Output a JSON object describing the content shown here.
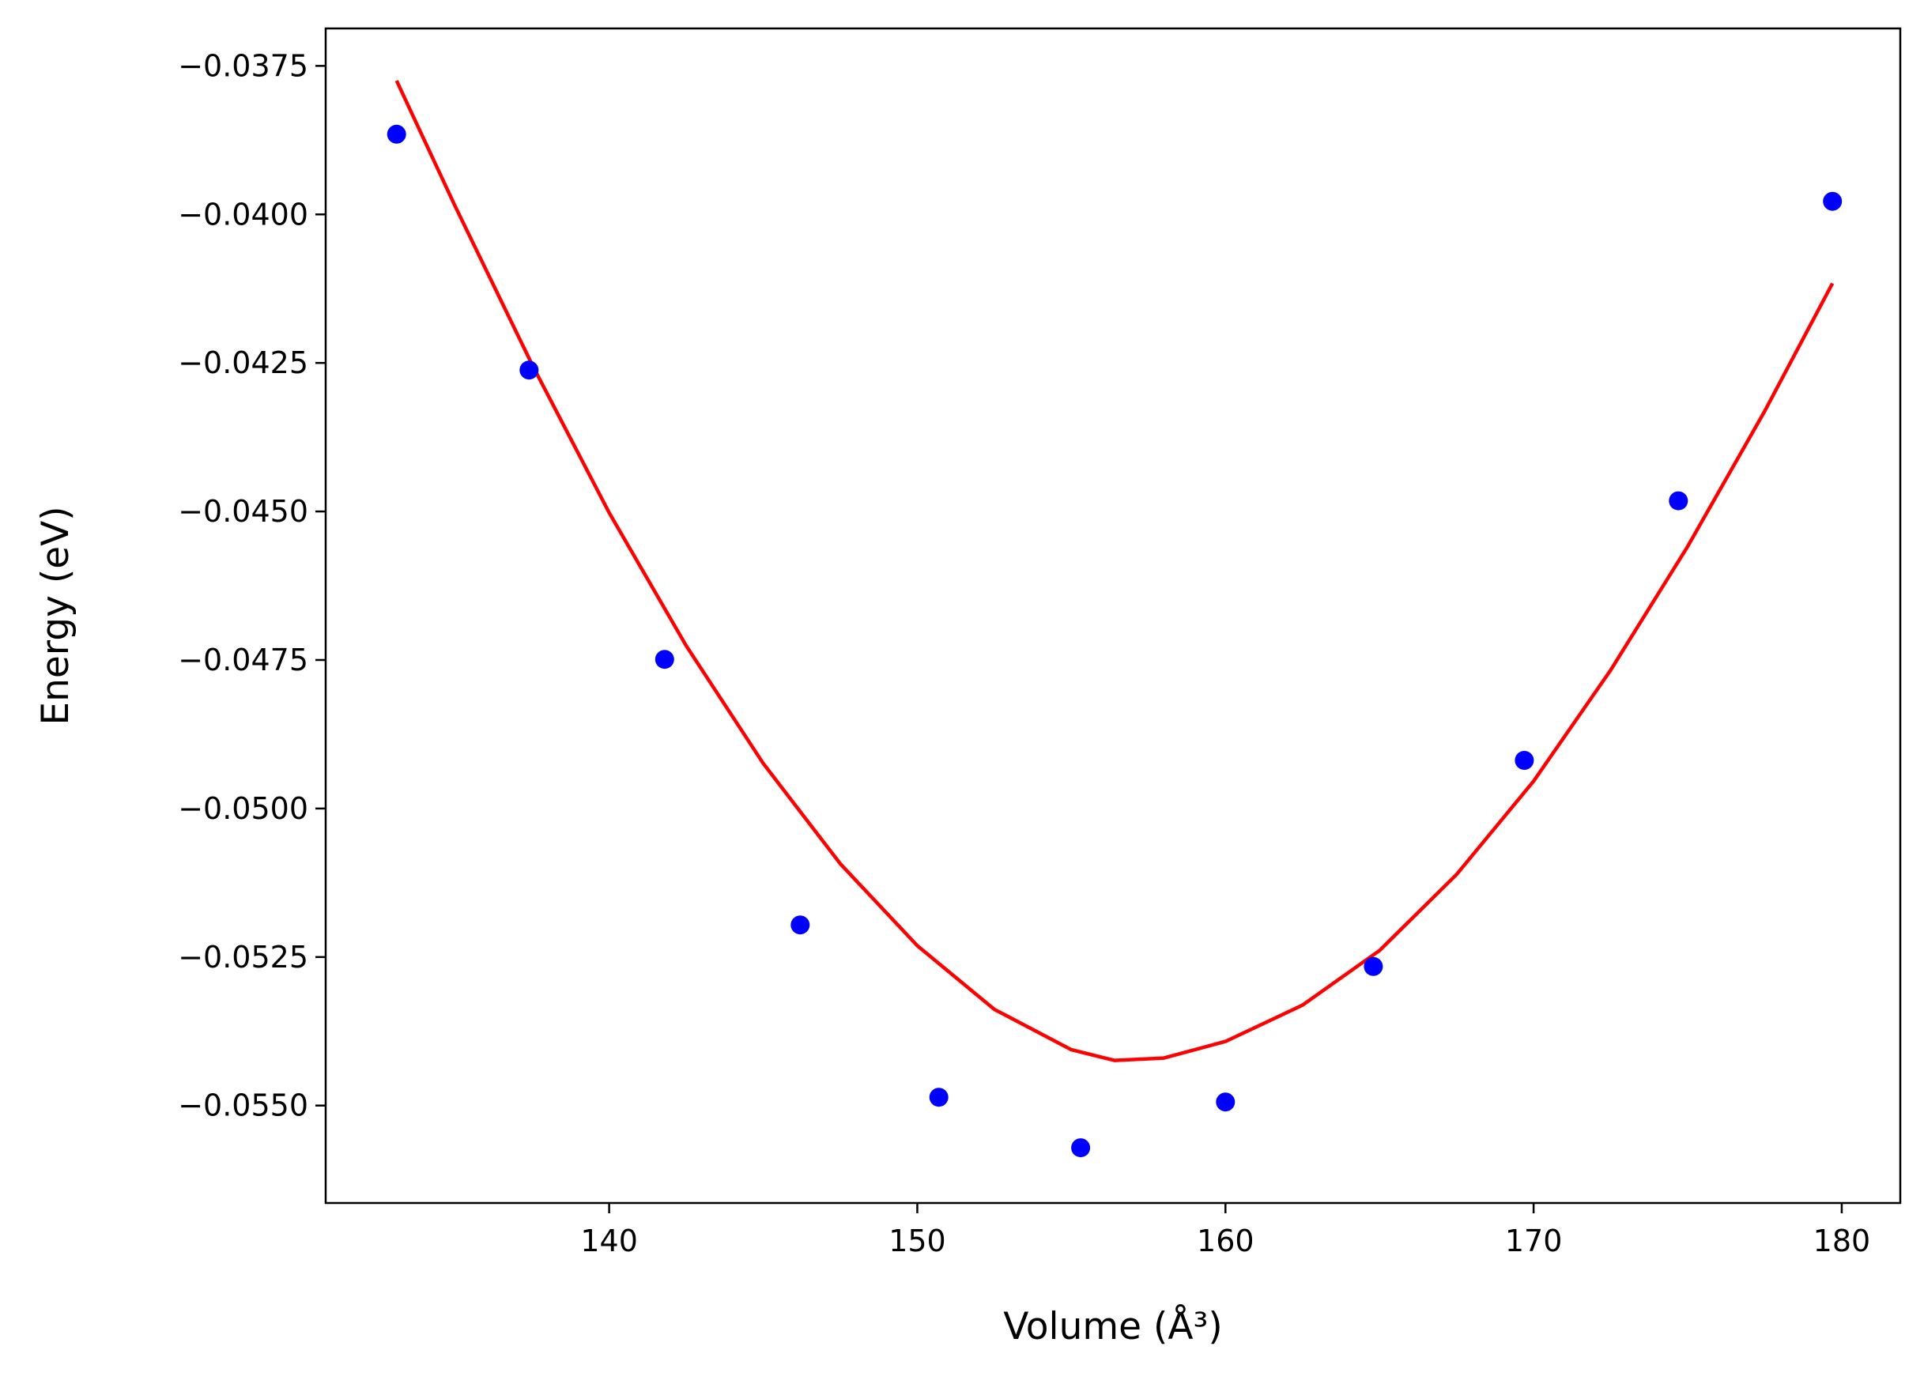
{
  "chart_data": {
    "type": "scatter",
    "title": "",
    "xlabel": "Volume (Å³)",
    "ylabel": "Energy (eV)",
    "xlim": [
      130.8,
      181.9
    ],
    "ylim": [
      -0.05664,
      -0.03687
    ],
    "xticks": [
      140,
      150,
      160,
      170,
      180
    ],
    "xtick_labels": [
      "140",
      "150",
      "160",
      "170",
      "180"
    ],
    "yticks": [
      -0.0375,
      -0.04,
      -0.0425,
      -0.045,
      -0.0475,
      -0.05,
      -0.0525,
      -0.055
    ],
    "ytick_labels": [
      "−0.0375",
      "−0.0400",
      "−0.0425",
      "−0.0450",
      "−0.0475",
      "−0.0500",
      "−0.0525",
      "−0.0550"
    ],
    "grid": false,
    "series": [
      {
        "kind": "scatter",
        "color": "#0000ff",
        "x": [
          133.1,
          137.4,
          141.8,
          146.2,
          150.7,
          155.3,
          160.0,
          164.8,
          169.7,
          174.7,
          179.7
        ],
        "y": [
          -0.03865,
          -0.04262,
          -0.04749,
          -0.05196,
          -0.05486,
          -0.05571,
          -0.05494,
          -0.05266,
          -0.04919,
          -0.04482,
          -0.03978
        ]
      },
      {
        "kind": "fit-line",
        "color": "#ff0000",
        "x": [
          133.1,
          135.0,
          137.5,
          140.0,
          142.5,
          145.0,
          147.5,
          150.0,
          152.5,
          155.0,
          156.4,
          158.0,
          160.0,
          162.5,
          165.0,
          167.5,
          170.0,
          172.5,
          175.0,
          177.5,
          179.7
        ],
        "y": [
          -0.03775,
          -0.03986,
          -0.04253,
          -0.04502,
          -0.04726,
          -0.04924,
          -0.05093,
          -0.05231,
          -0.05338,
          -0.05406,
          -0.05424,
          -0.0542,
          -0.05392,
          -0.05331,
          -0.05239,
          -0.05111,
          -0.04954,
          -0.04767,
          -0.04559,
          -0.04331,
          -0.04116
        ]
      }
    ]
  }
}
